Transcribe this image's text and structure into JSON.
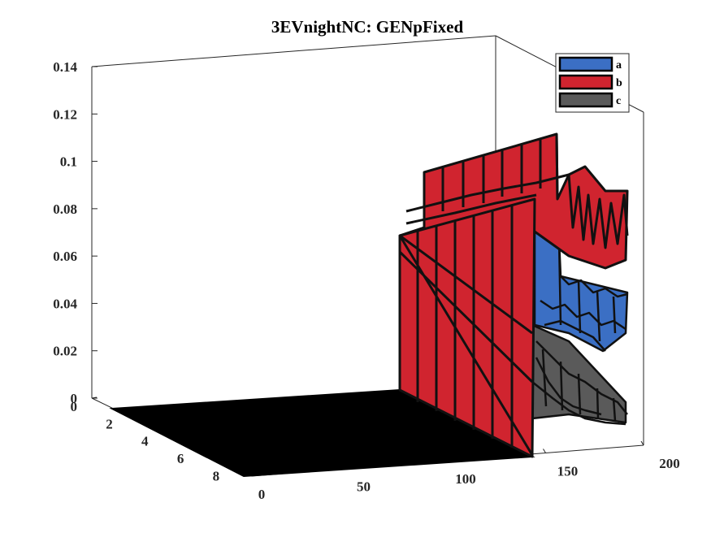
{
  "chart_data": {
    "type": "3d-surface",
    "title": "3EVnightNC: GENpFixed",
    "xlabel": "",
    "ylabel": "",
    "zlabel": "",
    "x_ticks": [
      "0",
      "50",
      "100",
      "150",
      "200"
    ],
    "y_ticks": [
      "0",
      "2",
      "4",
      "6",
      "8"
    ],
    "z_ticks": [
      "0",
      "0.02",
      "0.04",
      "0.06",
      "0.08",
      "0.1",
      "0.12",
      "0.14"
    ],
    "xlim": [
      0,
      200
    ],
    "ylim": [
      0,
      9
    ],
    "zlim": [
      0,
      0.14
    ],
    "grid": false,
    "legend_position": "top-right",
    "series": [
      {
        "name": "a",
        "color": "#3b6fc4",
        "approx_level": 0.045
      },
      {
        "name": "b",
        "color": "#d0242f",
        "approx_level": 0.08
      },
      {
        "name": "c",
        "color": "#5a5a5a",
        "approx_level": 0.02
      }
    ]
  }
}
